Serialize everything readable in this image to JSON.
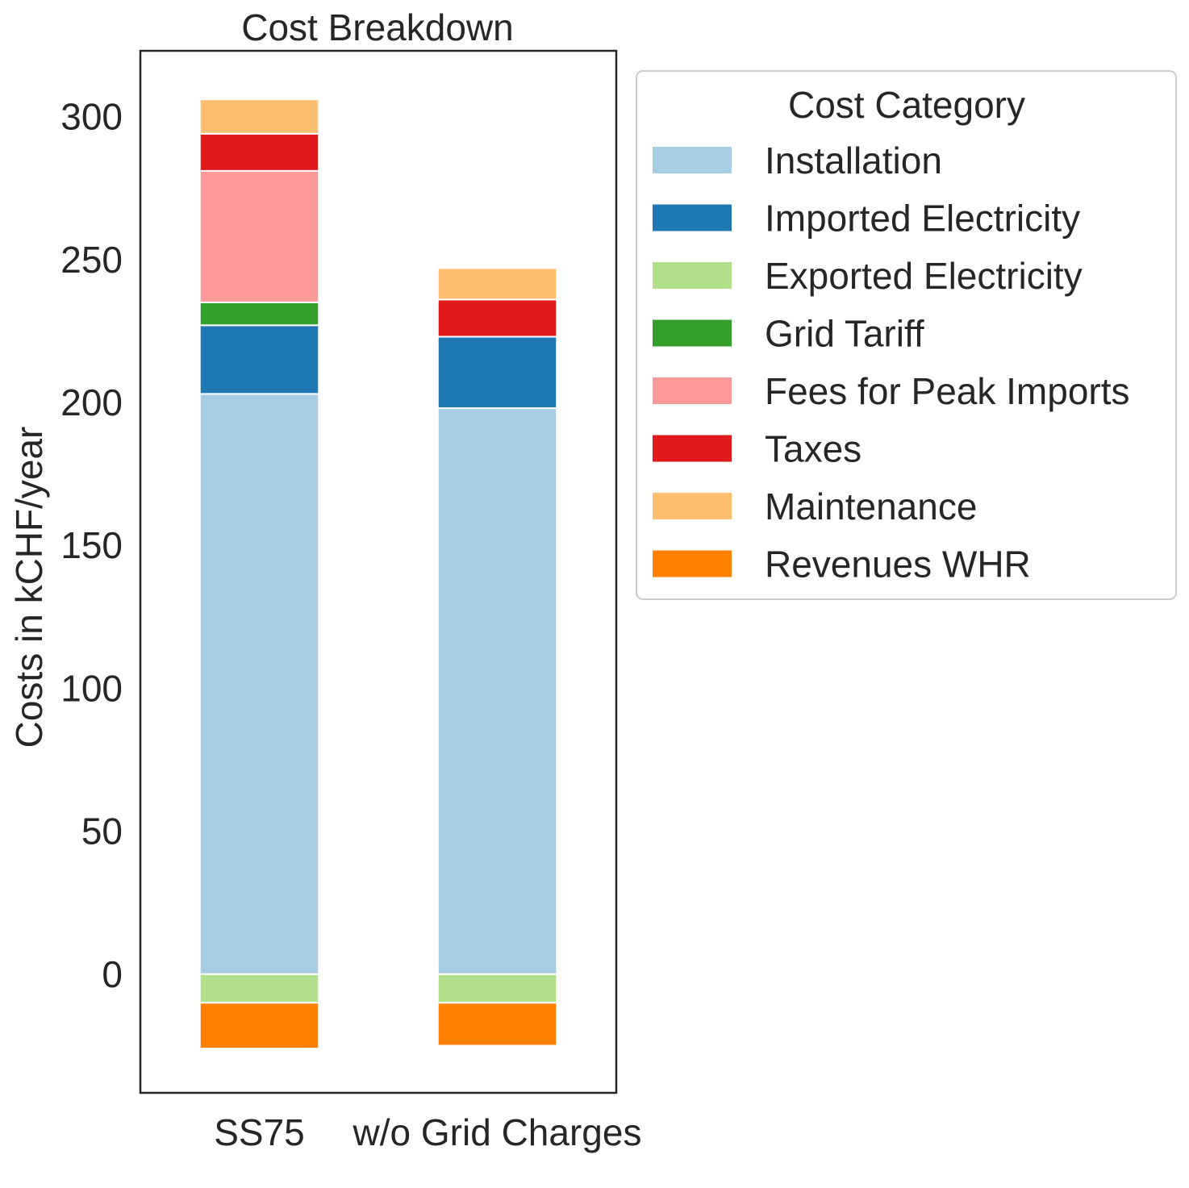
{
  "chart_data": {
    "type": "bar",
    "stacked": true,
    "title": "Cost Breakdown",
    "xlabel": "",
    "ylabel": "Costs in kCHF/year",
    "ylim": [
      -41.5,
      323
    ],
    "yticks": [
      0,
      50,
      100,
      150,
      200,
      250,
      300
    ],
    "grid": false,
    "legend_position": "outside-right-top",
    "legend_title": "Cost Category",
    "categories": [
      "SS75",
      "w/o Grid Charges"
    ],
    "series": [
      {
        "name": "Installation",
        "color": "#a6cee3",
        "values": [
          203,
          198
        ]
      },
      {
        "name": "Imported Electricity",
        "color": "#1f78b4",
        "values": [
          24,
          25
        ]
      },
      {
        "name": "Exported Electricity",
        "color": "#b2df8a",
        "values": [
          -10,
          -10
        ]
      },
      {
        "name": "Grid Tariff",
        "color": "#33a02c",
        "values": [
          8,
          0
        ]
      },
      {
        "name": "Fees for Peak Imports",
        "color": "#fb9a99",
        "values": [
          46,
          0
        ]
      },
      {
        "name": "Taxes",
        "color": "#e31a1c",
        "values": [
          13,
          13
        ]
      },
      {
        "name": "Maintenance",
        "color": "#fdbf6f",
        "values": [
          12,
          11
        ]
      },
      {
        "name": "Revenues WHR",
        "color": "#ff7f00",
        "values": [
          -16,
          -15
        ]
      }
    ]
  }
}
